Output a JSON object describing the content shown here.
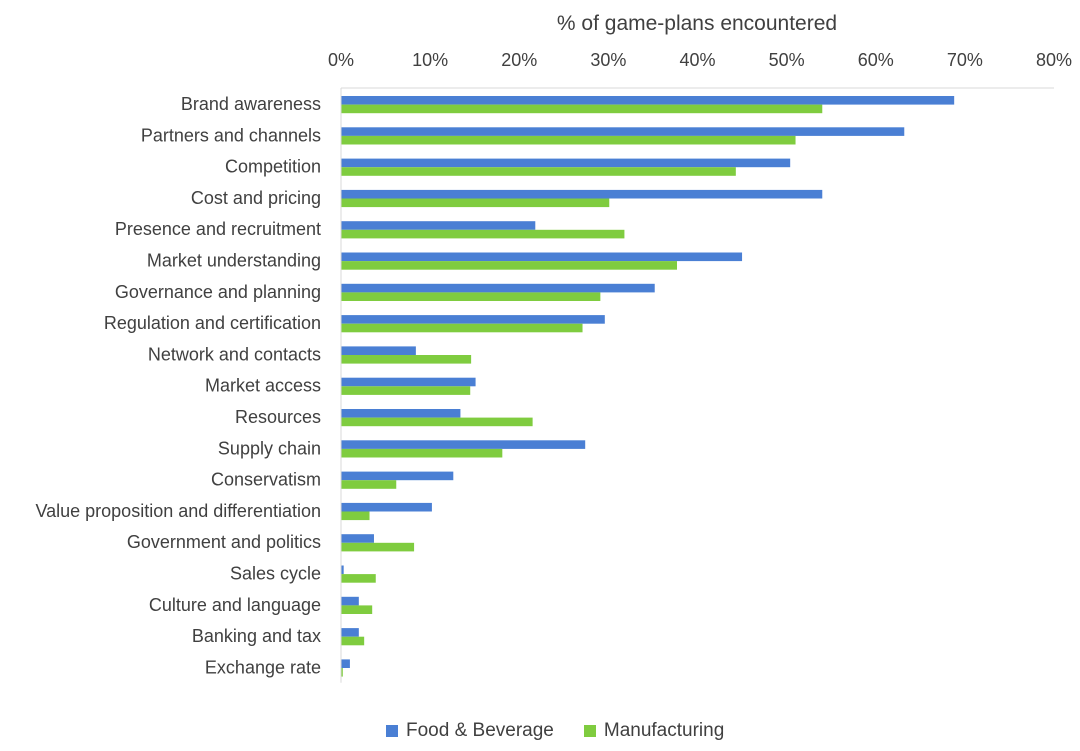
{
  "chart_data": {
    "type": "bar",
    "orientation": "horizontal",
    "title": "% of game-plans encountered",
    "xaxis": {
      "ticks": [
        "0%",
        "10%",
        "20%",
        "30%",
        "40%",
        "50%",
        "60%",
        "70%",
        "80%"
      ],
      "range": [
        0,
        80
      ],
      "position": "top"
    },
    "categories": [
      "Brand awareness",
      "Partners and channels",
      "Competition",
      "Cost and pricing",
      "Presence and recruitment",
      "Market understanding",
      "Governance and planning",
      "Regulation and certification",
      "Network and contacts",
      "Market access",
      "Resources",
      "Supply chain",
      "Conservatism",
      "Value proposition and differentiation",
      "Government and politics",
      "Sales cycle",
      "Culture and language",
      "Banking and tax",
      "Exchange rate"
    ],
    "series": [
      {
        "name": "Food & Beverage",
        "color": "#4a7fd4",
        "values": [
          68.8,
          63.2,
          50.4,
          54.0,
          21.8,
          45.0,
          35.2,
          29.6,
          8.4,
          15.1,
          13.4,
          27.4,
          12.6,
          10.2,
          3.7,
          0.3,
          2.0,
          2.0,
          1.0
        ]
      },
      {
        "name": "Manufacturing",
        "color": "#7fcc3f",
        "values": [
          54.0,
          51.0,
          44.3,
          30.1,
          31.8,
          37.7,
          29.1,
          27.1,
          14.6,
          14.5,
          21.5,
          18.1,
          6.2,
          3.2,
          8.2,
          3.9,
          3.5,
          2.6,
          0.2
        ]
      }
    ],
    "legend_position": "bottom",
    "grid": false
  }
}
